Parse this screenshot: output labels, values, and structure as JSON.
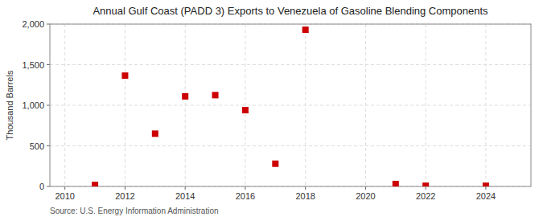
{
  "chart_data": {
    "type": "scatter",
    "title": "Annual Gulf Coast (PADD 3) Exports to Venezuela of Gasoline Blending Components",
    "ylabel": "Thousand Barrels",
    "source": "Source: U.S. Energy Information Administration",
    "x": [
      2011,
      2012,
      2013,
      2014,
      2015,
      2016,
      2017,
      2018,
      2021,
      2022,
      2024
    ],
    "values": [
      18,
      1365,
      650,
      1110,
      1125,
      940,
      280,
      1930,
      30,
      8,
      8
    ],
    "color": "#cc0000",
    "marker": "square",
    "xlim": [
      2009.5,
      2025.5
    ],
    "ylim": [
      0,
      2000
    ],
    "xticks": [
      2010,
      2012,
      2014,
      2016,
      2018,
      2020,
      2022,
      2024
    ],
    "yticks": [
      0,
      500,
      {
        "value": 1000,
        "label": "1,000"
      },
      {
        "value": 1500,
        "label": "1,500"
      },
      {
        "value": 2000,
        "label": "2,000"
      }
    ],
    "grid": true
  }
}
